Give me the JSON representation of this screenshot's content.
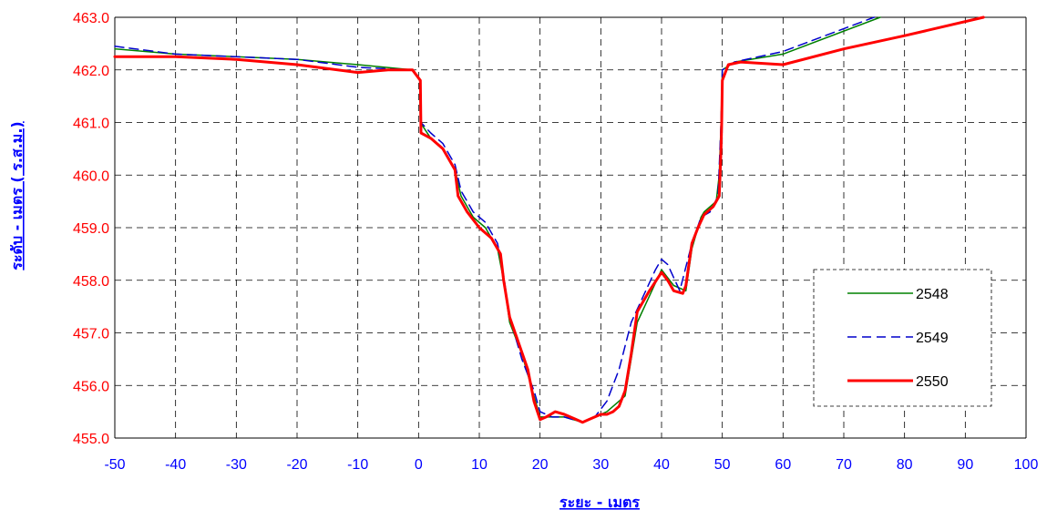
{
  "chart_data": {
    "type": "line",
    "xlabel": "ระยะ - เมตร",
    "ylabel": "ระดับ - เมตร ( ร.ส.ม.)",
    "xlim": [
      -50,
      100
    ],
    "ylim": [
      455,
      463
    ],
    "x_ticks": [
      -50,
      -40,
      -30,
      -20,
      -10,
      0,
      10,
      20,
      30,
      40,
      50,
      60,
      70,
      80,
      90,
      100
    ],
    "y_ticks": [
      455,
      456,
      457,
      458,
      459,
      460,
      461,
      462,
      463
    ],
    "y_tick_labels": [
      "455.0",
      "456.0",
      "457.0",
      "458.0",
      "459.0",
      "460.0",
      "461.0",
      "462.0",
      "463.0"
    ],
    "grid": true,
    "legend_position": "right",
    "colors": {
      "x_tick_label": "#0000ff",
      "y_tick_label": "#ff0000",
      "axis_title": "#0000ff",
      "grid": "#000000"
    },
    "series": [
      {
        "name": "2548",
        "color": "#008000",
        "style": "solid",
        "width": 1.5,
        "points": [
          [
            -50,
            462.4
          ],
          [
            -40,
            462.3
          ],
          [
            -30,
            462.25
          ],
          [
            -20,
            462.2
          ],
          [
            -10,
            462.1
          ],
          [
            -1,
            462.0
          ],
          [
            0.2,
            461.8
          ],
          [
            0.3,
            461.0
          ],
          [
            2,
            460.7
          ],
          [
            4,
            460.5
          ],
          [
            6,
            460.1
          ],
          [
            7,
            459.6
          ],
          [
            9,
            459.2
          ],
          [
            11,
            459.0
          ],
          [
            13,
            458.6
          ],
          [
            14,
            458.0
          ],
          [
            15,
            457.2
          ],
          [
            17,
            456.6
          ],
          [
            19,
            455.8
          ],
          [
            20,
            455.4
          ],
          [
            22,
            455.4
          ],
          [
            24,
            455.4
          ],
          [
            27,
            455.3
          ],
          [
            29,
            455.4
          ],
          [
            31,
            455.5
          ],
          [
            33,
            455.7
          ],
          [
            34,
            455.8
          ],
          [
            36,
            457.2
          ],
          [
            38,
            457.7
          ],
          [
            40,
            458.2
          ],
          [
            42,
            457.9
          ],
          [
            44,
            457.8
          ],
          [
            45,
            458.6
          ],
          [
            46.5,
            459.2
          ],
          [
            47,
            459.3
          ],
          [
            49,
            459.5
          ],
          [
            49.5,
            460.0
          ],
          [
            49.8,
            461.0
          ],
          [
            50,
            462.0
          ],
          [
            52,
            462.15
          ],
          [
            60,
            462.3
          ],
          [
            76,
            463.0
          ]
        ]
      },
      {
        "name": "2549",
        "color": "#0000cc",
        "style": "dashed",
        "width": 1.5,
        "points": [
          [
            -50,
            462.45
          ],
          [
            -40,
            462.3
          ],
          [
            -30,
            462.25
          ],
          [
            -20,
            462.2
          ],
          [
            -10,
            462.05
          ],
          [
            -1,
            462.0
          ],
          [
            0.3,
            461.8
          ],
          [
            0.4,
            461.0
          ],
          [
            2,
            460.8
          ],
          [
            4,
            460.6
          ],
          [
            6,
            460.2
          ],
          [
            7,
            459.7
          ],
          [
            9,
            459.3
          ],
          [
            11,
            459.1
          ],
          [
            13,
            458.7
          ],
          [
            14,
            458.1
          ],
          [
            15,
            457.3
          ],
          [
            17,
            456.5
          ],
          [
            19,
            455.9
          ],
          [
            20,
            455.5
          ],
          [
            22,
            455.4
          ],
          [
            24,
            455.4
          ],
          [
            27,
            455.3
          ],
          [
            29,
            455.4
          ],
          [
            31,
            455.7
          ],
          [
            33,
            456.3
          ],
          [
            35,
            457.2
          ],
          [
            37,
            457.7
          ],
          [
            39,
            458.2
          ],
          [
            40,
            458.4
          ],
          [
            41,
            458.3
          ],
          [
            43,
            457.8
          ],
          [
            45,
            458.7
          ],
          [
            46.5,
            459.2
          ],
          [
            48,
            459.3
          ],
          [
            49.3,
            459.6
          ],
          [
            49.8,
            461.0
          ],
          [
            50,
            462.0
          ],
          [
            52,
            462.15
          ],
          [
            60,
            462.35
          ],
          [
            75,
            463.0
          ]
        ]
      },
      {
        "name": "2550",
        "color": "#ff0000",
        "style": "solid",
        "width": 3,
        "points": [
          [
            -50,
            462.25
          ],
          [
            -40,
            462.25
          ],
          [
            -30,
            462.2
          ],
          [
            -20,
            462.1
          ],
          [
            -10,
            461.95
          ],
          [
            -5,
            462.0
          ],
          [
            -1,
            462.0
          ],
          [
            0.3,
            461.8
          ],
          [
            0.4,
            460.8
          ],
          [
            2,
            460.7
          ],
          [
            4,
            460.5
          ],
          [
            6,
            460.1
          ],
          [
            6.5,
            459.6
          ],
          [
            8,
            459.3
          ],
          [
            10,
            459.0
          ],
          [
            12,
            458.8
          ],
          [
            13.5,
            458.5
          ],
          [
            14,
            458.0
          ],
          [
            15,
            457.3
          ],
          [
            16.5,
            456.8
          ],
          [
            18,
            456.3
          ],
          [
            19,
            455.7
          ],
          [
            20,
            455.35
          ],
          [
            21,
            455.4
          ],
          [
            22.5,
            455.5
          ],
          [
            24,
            455.45
          ],
          [
            26,
            455.35
          ],
          [
            27,
            455.3
          ],
          [
            28,
            455.35
          ],
          [
            30,
            455.45
          ],
          [
            31,
            455.45
          ],
          [
            32,
            455.5
          ],
          [
            33,
            455.6
          ],
          [
            34,
            455.9
          ],
          [
            35,
            456.6
          ],
          [
            36,
            457.4
          ],
          [
            38,
            457.8
          ],
          [
            40,
            458.15
          ],
          [
            41,
            458.0
          ],
          [
            42,
            457.8
          ],
          [
            43.5,
            457.75
          ],
          [
            44,
            457.9
          ],
          [
            45,
            458.7
          ],
          [
            46,
            459.0
          ],
          [
            47,
            459.25
          ],
          [
            48.5,
            459.4
          ],
          [
            49.5,
            459.6
          ],
          [
            49.8,
            460.5
          ],
          [
            49.9,
            461.0
          ],
          [
            50,
            461.8
          ],
          [
            51,
            462.1
          ],
          [
            53,
            462.15
          ],
          [
            60,
            462.1
          ],
          [
            70,
            462.4
          ],
          [
            80,
            462.65
          ],
          [
            93,
            463.0
          ]
        ]
      }
    ]
  }
}
